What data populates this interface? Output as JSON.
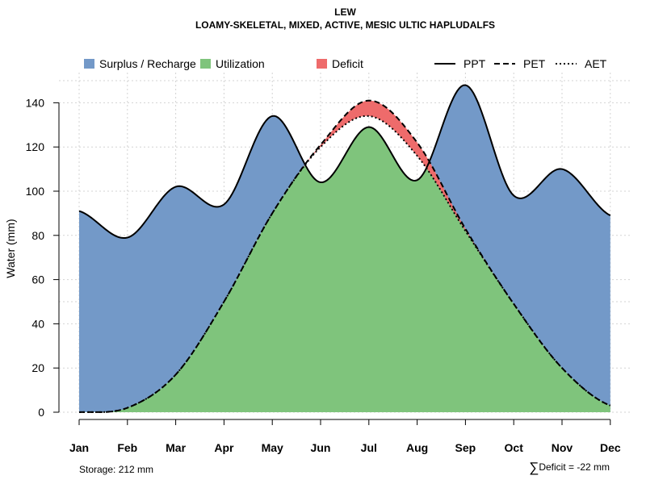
{
  "title": "LEW",
  "subtitle": "LOAMY-SKELETAL, MIXED, ACTIVE, MESIC ULTIC HAPLUDALFS",
  "footer": {
    "storage": "Storage: 212 mm",
    "deficit": "Deficit = -22 mm"
  },
  "legend": {
    "surplus": "Surplus / Recharge",
    "utilization": "Utilization",
    "deficit": "Deficit",
    "ppt": "PPT",
    "pet": "PET",
    "aet": "AET"
  },
  "colors": {
    "surplus": "#7399c8",
    "utilization": "#7fc47c",
    "deficit": "#ee6b6b",
    "grid": "#d3d3d3"
  },
  "chart_data": {
    "type": "area",
    "title": "LEW",
    "subtitle": "LOAMY-SKELETAL, MIXED, ACTIVE, MESIC ULTIC HAPLUDALFS",
    "xlabel": "",
    "ylabel": "Water (mm)",
    "ylim": [
      0,
      150
    ],
    "y_ticks": [
      0,
      20,
      40,
      60,
      80,
      100,
      120,
      140
    ],
    "categories": [
      "Jan",
      "Feb",
      "Mar",
      "Apr",
      "May",
      "Jun",
      "Jul",
      "Aug",
      "Sep",
      "Oct",
      "Nov",
      "Dec"
    ],
    "series": [
      {
        "name": "PPT",
        "style": "solid",
        "values": [
          91,
          79,
          102,
          94,
          134,
          104,
          129,
          105,
          148,
          98,
          110,
          89
        ]
      },
      {
        "name": "PET",
        "style": "dashed",
        "values": [
          0,
          2,
          17,
          50,
          90,
          121,
          141,
          122,
          83,
          49,
          20,
          3
        ]
      },
      {
        "name": "AET",
        "style": "dotted",
        "values": [
          0,
          2,
          17,
          50,
          90,
          120,
          134,
          116,
          82,
          49,
          20,
          3
        ]
      }
    ],
    "areas": [
      "Surplus / Recharge",
      "Utilization",
      "Deficit"
    ],
    "grid": true,
    "legend_position": "top"
  }
}
